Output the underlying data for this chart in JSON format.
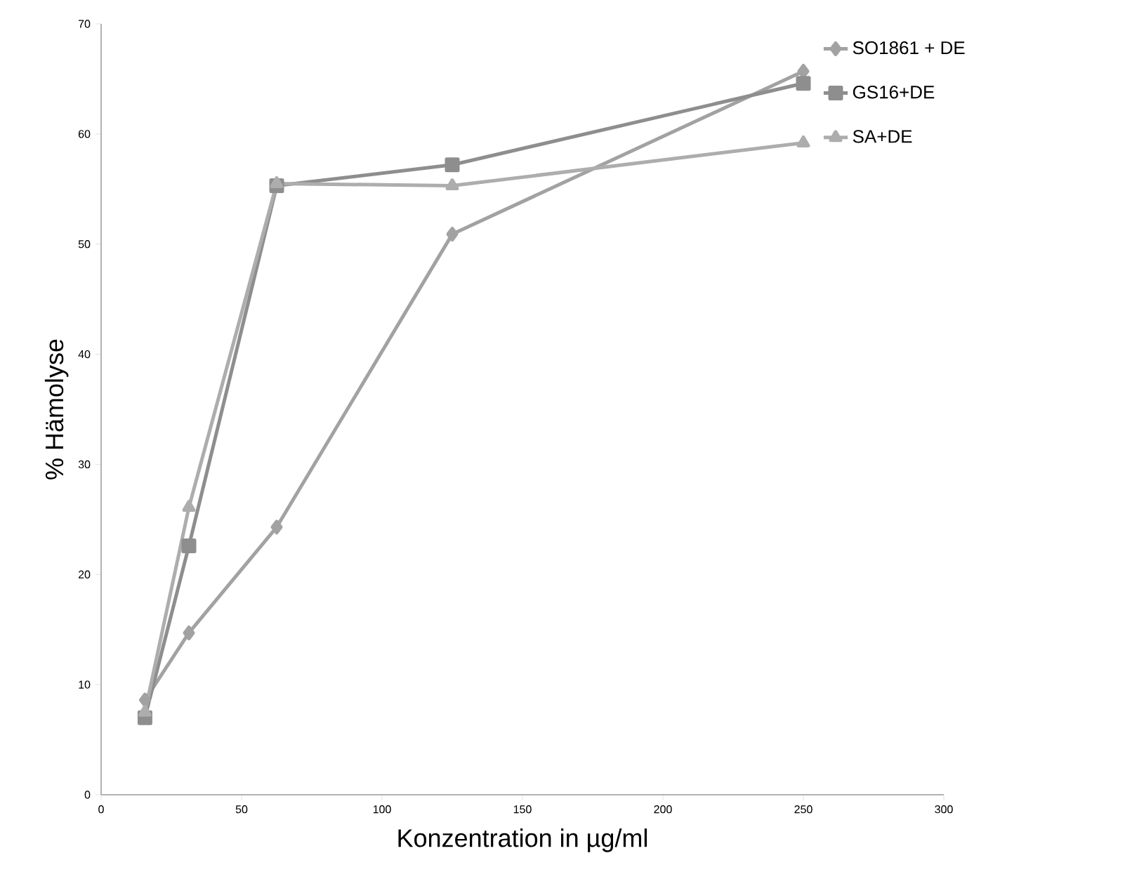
{
  "chart_data": {
    "type": "line",
    "xlabel": "Konzentration in µg/ml",
    "ylabel": "% Hämolyse",
    "xlim": [
      0,
      300
    ],
    "xticks": [
      0,
      50,
      100,
      150,
      200,
      250,
      300
    ],
    "ylim": [
      0,
      70
    ],
    "yticks": [
      0,
      10,
      20,
      30,
      40,
      50,
      60,
      70
    ],
    "grid": false,
    "legend": "top right",
    "line_style": "solid",
    "series": [
      {
        "name": "SO1861 + DE",
        "color": "#a2a2a2",
        "marker": "diamond",
        "x": [
          15.6,
          31.25,
          62.5,
          125,
          250
        ],
        "values": [
          8.6,
          14.7,
          24.3,
          50.9,
          65.7
        ]
      },
      {
        "name": "GS16+DE",
        "color": "#8e8e8e",
        "marker": "square",
        "x": [
          15.6,
          31.25,
          62.5,
          125,
          250
        ],
        "values": [
          7.0,
          22.6,
          55.3,
          57.2,
          64.6
        ]
      },
      {
        "name": "SA+DE",
        "color": "#adadad",
        "marker": "triangle",
        "x": [
          15.6,
          31.25,
          62.5,
          125,
          250
        ],
        "values": [
          7.5,
          26.1,
          55.5,
          55.3,
          59.2
        ]
      }
    ]
  }
}
